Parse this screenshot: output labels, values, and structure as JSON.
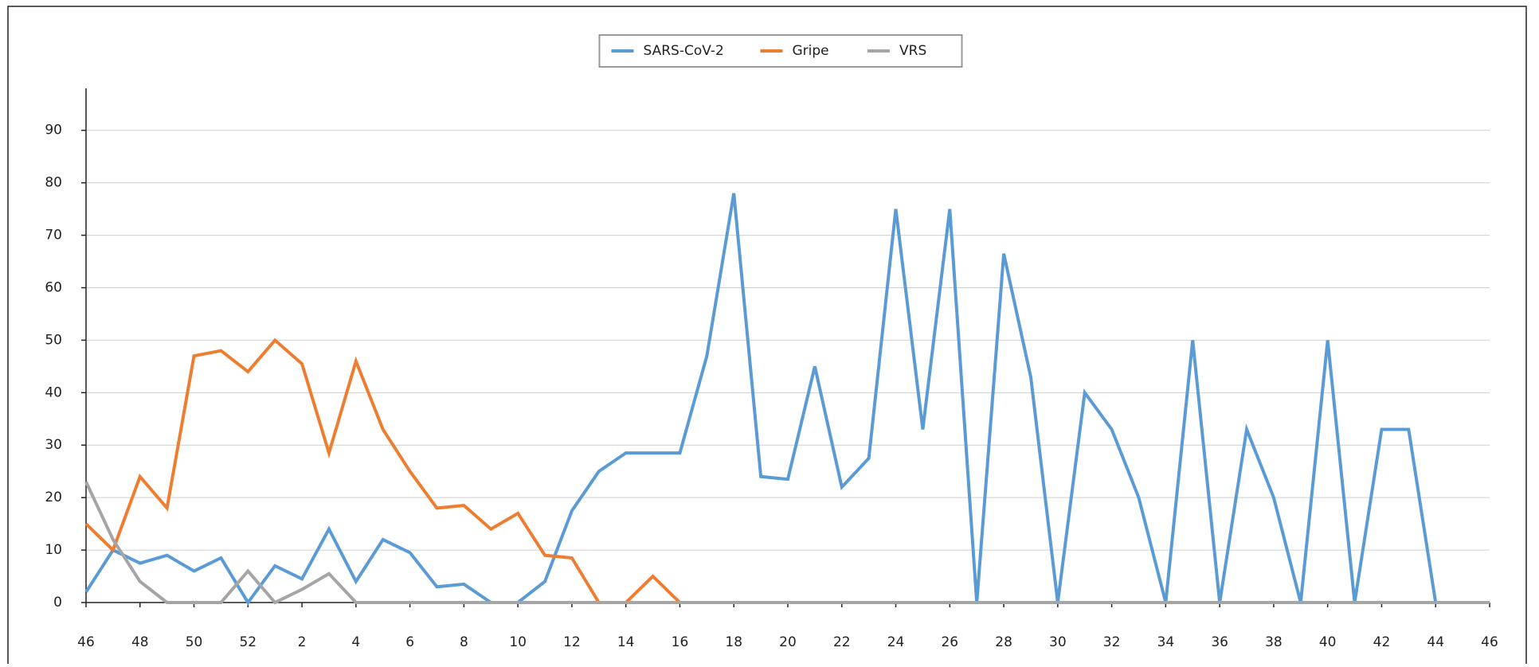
{
  "chart_data": {
    "type": "line",
    "categories": [
      46,
      null,
      48,
      null,
      50,
      null,
      52,
      null,
      2,
      null,
      4,
      null,
      6,
      null,
      8,
      null,
      10,
      null,
      12,
      null,
      14,
      null,
      16,
      null,
      18,
      null,
      20,
      null,
      22,
      null,
      24,
      null,
      26,
      null,
      28,
      null,
      30,
      null,
      32,
      null,
      34,
      null,
      36,
      null,
      38,
      null,
      40,
      null,
      42,
      null,
      44,
      null,
      46
    ],
    "series": [
      {
        "name": "SARS-CoV-2",
        "color": "#5b9bd5",
        "values": [
          2,
          10,
          7.5,
          9,
          6,
          8.5,
          0,
          7,
          4.5,
          14,
          4,
          12,
          9.5,
          3,
          3.5,
          0,
          0,
          4,
          17.5,
          25,
          28.5,
          28.5,
          28.5,
          47,
          78,
          24,
          23.5,
          45,
          22,
          27.5,
          75,
          33,
          75,
          0,
          66.5,
          43,
          0,
          40,
          33,
          20,
          0,
          50,
          0,
          33,
          20,
          0,
          50,
          0,
          33,
          33,
          0,
          0,
          0
        ]
      },
      {
        "name": "Gripe",
        "color": "#ed7d31",
        "values": [
          15,
          10,
          24,
          18,
          47,
          48,
          44,
          50,
          45.5,
          28.5,
          46,
          33,
          25,
          18,
          18.5,
          14,
          17,
          9,
          8.5,
          0,
          0,
          5,
          0,
          0,
          0,
          0,
          0,
          0,
          0,
          0,
          0,
          0,
          0,
          0,
          0,
          0,
          0,
          0,
          0,
          0,
          0,
          0,
          0,
          0,
          0,
          0,
          0,
          0,
          0,
          0,
          0,
          0,
          0
        ]
      },
      {
        "name": "VRS",
        "color": "#a5a5a5",
        "values": [
          23,
          12,
          4,
          0,
          0,
          0,
          6,
          0,
          2.5,
          5.5,
          0,
          0,
          0,
          0,
          0,
          0,
          0,
          0,
          0,
          0,
          0,
          0,
          0,
          0,
          0,
          0,
          0,
          0,
          0,
          0,
          0,
          0,
          0,
          0,
          0,
          0,
          0,
          0,
          0,
          0,
          0,
          0,
          0,
          0,
          0,
          0,
          0,
          0,
          0,
          0,
          0,
          0,
          0
        ]
      }
    ],
    "ylim": [
      0,
      98
    ],
    "yticks": [
      0,
      10,
      20,
      30,
      40,
      50,
      60,
      70,
      80,
      90
    ],
    "grid": true,
    "legend": "top"
  }
}
